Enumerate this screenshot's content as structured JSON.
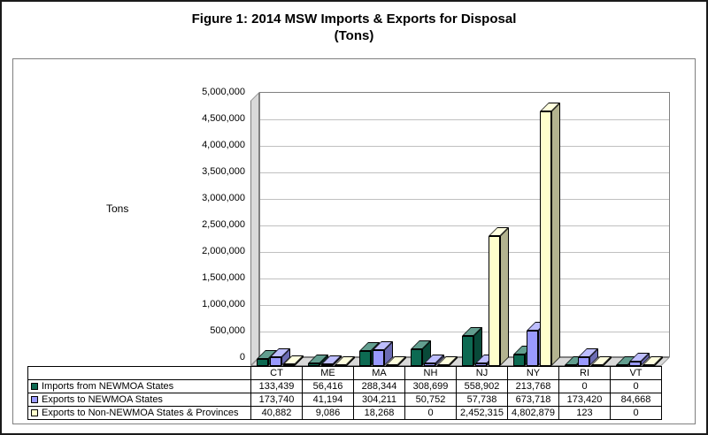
{
  "figure": {
    "title": "Figure 1: 2014 MSW Imports & Exports for Disposal",
    "subtitle": "(Tons)",
    "y_axis_label": "Tons"
  },
  "chart_data": {
    "type": "bar",
    "title": "Figure 1: 2014 MSW Imports & Exports for Disposal (Tons)",
    "xlabel": "",
    "ylabel": "Tons",
    "ylim": [
      0,
      5000000
    ],
    "ytick_step": 500000,
    "grid": true,
    "legend_position": "table-below",
    "style": "3d-clustered-bar",
    "categories": [
      "CT",
      "ME",
      "MA",
      "NH",
      "NJ",
      "NY",
      "RI",
      "VT"
    ],
    "series": [
      {
        "name": "Imports from NEWMOA States",
        "color": "#0d6a52",
        "values": [
          133439,
          56416,
          288344,
          308699,
          558902,
          213768,
          0,
          0
        ]
      },
      {
        "name": "Exports to NEWMOA States",
        "color": "#9999ff",
        "values": [
          173740,
          41194,
          304211,
          50752,
          57738,
          673718,
          173420,
          84668
        ]
      },
      {
        "name": "Exports to Non-NEWMOA States & Provinces",
        "color": "#ffffcc",
        "values": [
          40882,
          9086,
          18268,
          0,
          2452315,
          4802879,
          123,
          0
        ]
      }
    ]
  }
}
